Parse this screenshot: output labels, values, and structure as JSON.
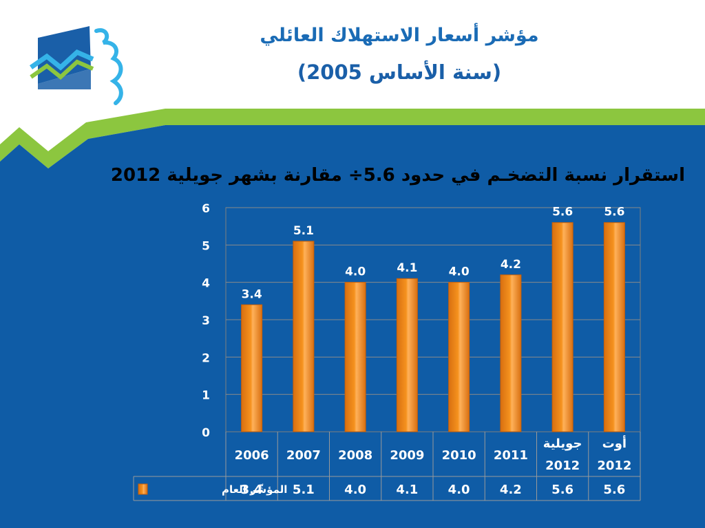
{
  "slide": {
    "title_line1": "مؤشر أسعار الاستهلاك العائلي",
    "title_line2": "(سنة الأساس 2005)",
    "subtitle": "استقرار نسبة التضخـم في حدود 5.6÷ مقارنة بشهر جويلية 2012"
  },
  "colors": {
    "blue_background": "#0f5ca6",
    "green_band": "#8cc63f",
    "bar_orange": "#f5921e",
    "title_blue": "#1a6bb5"
  },
  "chart_data": {
    "type": "bar",
    "categories": [
      "2006",
      "2007",
      "2008",
      "2009",
      "2010",
      "2011",
      "جويلية 2012",
      "أوت 2012"
    ],
    "category_lines": [
      [
        "2006"
      ],
      [
        "2007"
      ],
      [
        "2008"
      ],
      [
        "2009"
      ],
      [
        "2010"
      ],
      [
        "2011"
      ],
      [
        "جويلية",
        "2012"
      ],
      [
        "أوت",
        "2012"
      ]
    ],
    "series": [
      {
        "name": "المؤشّر العام",
        "values": [
          3.4,
          5.1,
          4.0,
          4.1,
          4.0,
          4.2,
          5.6,
          5.6
        ],
        "labels": [
          "3.4",
          "5.1",
          "4.0",
          "4.1",
          "4.0",
          "4.2",
          "5.6",
          "5.6"
        ]
      }
    ],
    "ylim": [
      0,
      6
    ],
    "yticks": [
      "0",
      "1",
      "2",
      "3",
      "4",
      "5",
      "6"
    ],
    "grid": true,
    "legend": "data-table"
  }
}
